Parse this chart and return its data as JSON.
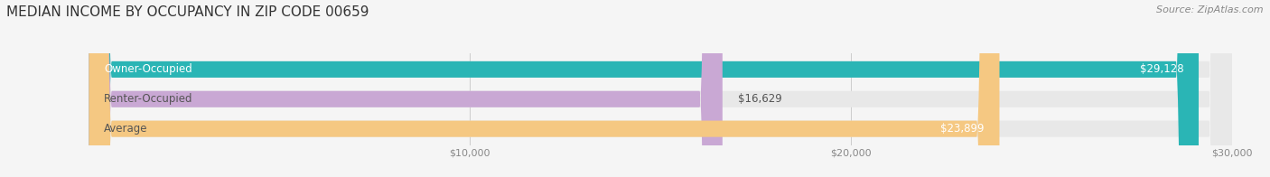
{
  "title": "MEDIAN INCOME BY OCCUPANCY IN ZIP CODE 00659",
  "source": "Source: ZipAtlas.com",
  "categories": [
    "Owner-Occupied",
    "Renter-Occupied",
    "Average"
  ],
  "values": [
    29128,
    16629,
    23899
  ],
  "bar_colors": [
    "#2ab5b5",
    "#c9a8d4",
    "#f5c882"
  ],
  "value_labels": [
    "$29,128",
    "$16,629",
    "$23,899"
  ],
  "label_inside": [
    true,
    false,
    true
  ],
  "xlim": [
    0,
    30000
  ],
  "xticks": [
    10000,
    20000,
    30000
  ],
  "xtick_labels": [
    "$10,000",
    "$20,000",
    "$30,000"
  ],
  "title_fontsize": 11,
  "source_fontsize": 8,
  "label_fontsize": 8.5,
  "bar_label_fontsize": 8.5,
  "background_color": "#f5f5f5",
  "bar_bg_color": "#e8e8e8"
}
